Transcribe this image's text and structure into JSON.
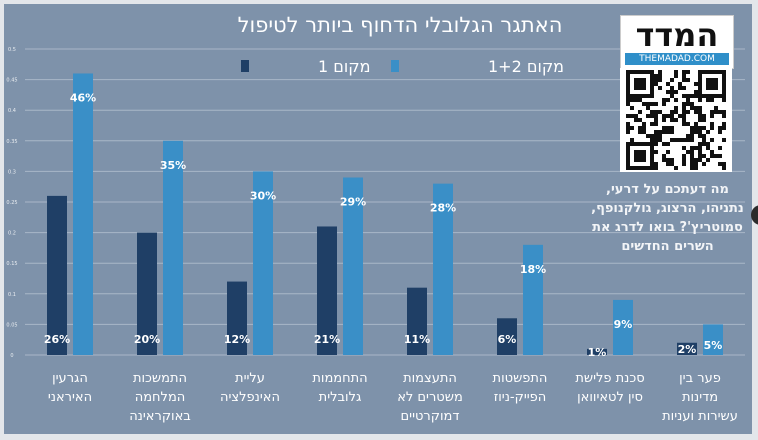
{
  "chart_data": {
    "type": "bar",
    "title": "האתגר הגלובלי הדחוף ביותר לטיפול",
    "categories": [
      "הגרעין האיראני",
      "התמשכות המלחמה באוקראינה",
      "עליית האינפלציה",
      "התחממות גלובלית",
      "התעצמות משטרים לא דמוקרטיים",
      "התפשטות הפייק-ניוז",
      "סכנת פלישת סין לטאיוואן",
      "פער בין מדינות עשירות ועניות"
    ],
    "category_lines": [
      [
        "הגרעין",
        "האיראני"
      ],
      [
        "התמשכות",
        "המלחמה",
        "באוקראינה"
      ],
      [
        "עליית",
        "האינפלציה"
      ],
      [
        "התחממות",
        "גלובלית"
      ],
      [
        "התעצמות",
        "משטרים לא",
        "דמוקרטיים"
      ],
      [
        "התפשטות",
        "הפייק-ניוז"
      ],
      [
        "סכנת פלישת",
        "סין לטאיוואן"
      ],
      [
        "פער בין",
        "מדינות",
        "עשירות ועניות"
      ]
    ],
    "series": [
      {
        "name": "מקום 1",
        "color": "#1f3f66",
        "values": [
          0.26,
          0.2,
          0.12,
          0.21,
          0.11,
          0.06,
          0.01,
          0.02
        ],
        "labels": [
          "26%",
          "20%",
          "12%",
          "21%",
          "11%",
          "6%",
          "1%",
          "2%"
        ]
      },
      {
        "name": "מקום 1+2",
        "color": "#3a8fc7",
        "values": [
          0.46,
          0.35,
          0.3,
          0.29,
          0.28,
          0.18,
          0.09,
          0.05
        ],
        "labels": [
          "46%",
          "35%",
          "30%",
          "29%",
          "28%",
          "18%",
          "9%",
          "5%"
        ]
      }
    ],
    "yticks": [
      "0",
      "0.05",
      "0.1",
      "0.15",
      "0.2",
      "0.25",
      "0.3",
      "0.35",
      "0.4",
      "0.45",
      "0.5"
    ],
    "ylim": [
      0,
      0.5
    ],
    "grid": true,
    "legend": "top-center",
    "background": "#7e92aa"
  },
  "watermark": {
    "logo": "המדד",
    "site": "THEMADAD.COM",
    "promo": "מה דעתכם על דרעי, נתניהו, הרצוג, גולקנופף, סמוטריץ'? בואו לדרג את השרים החדשים"
  }
}
